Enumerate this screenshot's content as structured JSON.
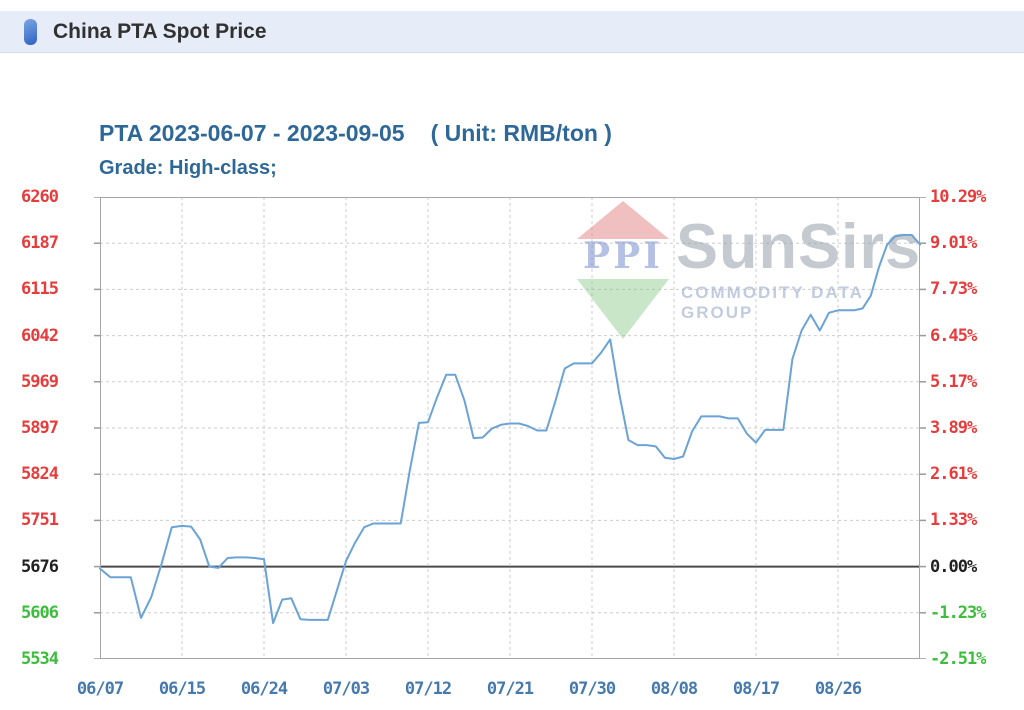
{
  "header": {
    "title": "China PTA Spot Price"
  },
  "chart_header": {
    "title": "PTA 2023-06-07 - 2023-09-05",
    "unit": "( Unit: RMB/ton )",
    "grade": "Grade: High-class;"
  },
  "watermark": {
    "logo_text": "PPI",
    "brand": "SunSirs",
    "tagline": "COMMODITY DATA GROUP"
  },
  "colors": {
    "red": "#e83c3c",
    "green": "#3cbe3c",
    "black": "#222222",
    "axis_blue": "#4679ad",
    "title_blue": "#2e6899",
    "line": "#6ba3d6",
    "grid": "#cdcdcd",
    "border": "#a6a6a6",
    "zero_line": "#4a4a4a",
    "header_bg": "#e6edf8"
  },
  "chart_data": {
    "type": "line",
    "title": "PTA 2023-06-07 - 2023-09-05 ( Unit: RMB/ton )",
    "grade": "High-class",
    "unit": "RMB/ton",
    "date_start": "2023-06-07",
    "date_end": "2023-09-05",
    "legend_position": "none",
    "grid": true,
    "y_axis_left": {
      "ticks": [
        "6260",
        "6187",
        "6115",
        "6042",
        "5969",
        "5897",
        "5824",
        "5751",
        "5676",
        "5606",
        "5534"
      ]
    },
    "y_axis_right": {
      "ticks": [
        "10.29%",
        "9.01%",
        "7.73%",
        "6.45%",
        "5.17%",
        "3.89%",
        "2.61%",
        "1.33%",
        "0.00%",
        "-1.23%",
        "-2.51%"
      ]
    },
    "tick_colors": [
      "red",
      "red",
      "red",
      "red",
      "red",
      "red",
      "red",
      "red",
      "black",
      "green",
      "green"
    ],
    "zero_index": 8,
    "ylim": [
      5534,
      6260
    ],
    "x_axis": {
      "labels": [
        "06/07",
        "06/15",
        "06/24",
        "07/03",
        "07/12",
        "07/21",
        "07/30",
        "08/08",
        "08/17",
        "08/26"
      ],
      "label_days": [
        0,
        8,
        17,
        26,
        35,
        44,
        53,
        62,
        71,
        80
      ],
      "total_days": 90
    },
    "series": [
      {
        "name": "PTA spot price (daily, RMB/ton)",
        "values": [
          5673,
          5660,
          5660,
          5660,
          5598,
          5630,
          5680,
          5740,
          5742,
          5741,
          5720,
          5676,
          5674,
          5690,
          5691,
          5691,
          5690,
          5688,
          5590,
          5626,
          5628,
          5596,
          5595,
          5595,
          5595,
          5640,
          5685,
          5715,
          5740,
          5746,
          5746,
          5746,
          5746,
          5830,
          5905,
          5906,
          5945,
          5980,
          5980,
          5940,
          5881,
          5882,
          5896,
          5902,
          5904,
          5904,
          5900,
          5893,
          5893,
          5940,
          5990,
          5998,
          5998,
          5998,
          6015,
          6036,
          5950,
          5878,
          5870,
          5870,
          5868,
          5850,
          5848,
          5852,
          5892,
          5915,
          5915,
          5915,
          5912,
          5912,
          5888,
          5874,
          5894,
          5894,
          5894,
          6005,
          6050,
          6075,
          6050,
          6078,
          6082,
          6082,
          6082,
          6085,
          6105,
          6150,
          6185,
          6198,
          6200,
          6200,
          6185
        ]
      }
    ]
  }
}
